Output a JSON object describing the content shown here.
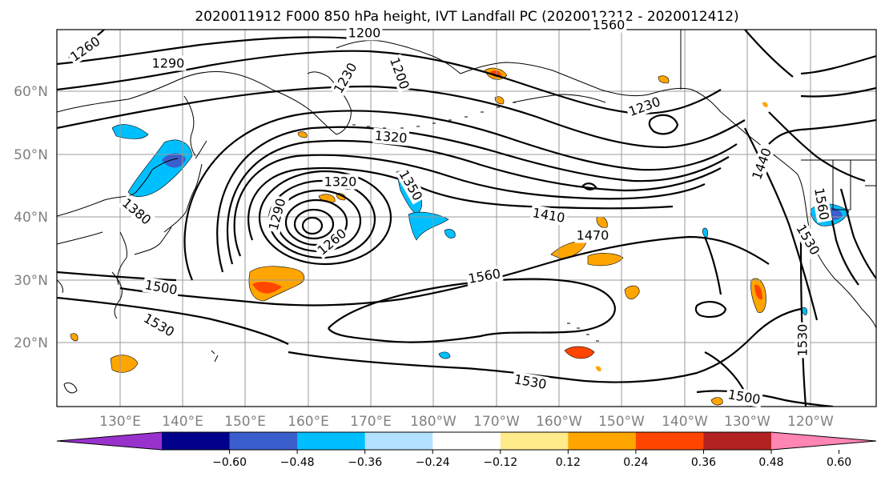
{
  "title": "2020011912 F000 850 hPa height, IVT Landfall PC (2020012212 - 2020012412)",
  "lat_labels": [
    "60°N",
    "50°N",
    "40°N",
    "30°N",
    "20°N"
  ],
  "lon_labels": [
    "130°E",
    "140°E",
    "150°E",
    "160°E",
    "170°E",
    "180°W",
    "170°W",
    "160°W",
    "150°W",
    "140°W",
    "130°W",
    "120°W"
  ],
  "contour_labels": [
    "1260",
    "1290",
    "1200",
    "1230",
    "1200",
    "1230",
    "1320",
    "1320",
    "1350",
    "1290",
    "1260",
    "1380",
    "1410",
    "1470",
    "1440",
    "1560",
    "1560",
    "1530",
    "1500",
    "1530",
    "1560",
    "1530",
    "1500",
    "1530"
  ],
  "colorbar": {
    "ticks": [
      "−0.60",
      "−0.48",
      "−0.36",
      "−0.24",
      "−0.12",
      "0.12",
      "0.24",
      "0.36",
      "0.48",
      "0.60"
    ],
    "colors": [
      "#9932cc",
      "#00008b",
      "#3a5fcd",
      "#00bfff",
      "#b2e2ff",
      "#ffffff",
      "#ffeb8a",
      "#ffa500",
      "#ff4500",
      "#b22222",
      "#ff85b3"
    ]
  },
  "field_colors": {
    "neg_light": "#b2e2ff",
    "neg_mid": "#00bfff",
    "neg_strong": "#3a5fcd",
    "pos_light": "#ffeb8a",
    "pos_mid": "#ffa500",
    "pos_strong": "#ff4500"
  }
}
